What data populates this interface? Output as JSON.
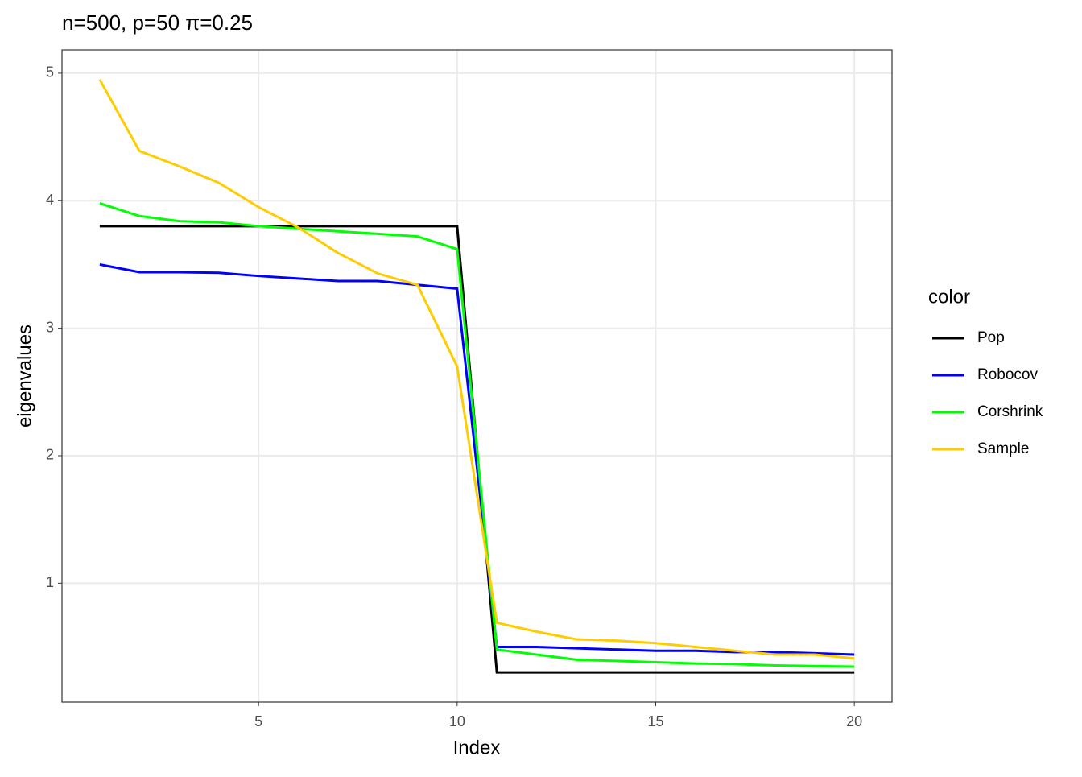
{
  "chart_data": {
    "type": "line",
    "title": "n=500, p=50 π=0.25",
    "x_label": "Index",
    "y_label": "eigenvalues",
    "legend_title": "color",
    "x": [
      1,
      2,
      3,
      4,
      5,
      6,
      7,
      8,
      9,
      10,
      11,
      12,
      13,
      14,
      15,
      16,
      17,
      18,
      19,
      20
    ],
    "series": [
      {
        "name": "Pop",
        "color": "#000000",
        "values": [
          3.8,
          3.8,
          3.8,
          3.8,
          3.8,
          3.8,
          3.8,
          3.8,
          3.8,
          3.8,
          0.3,
          0.3,
          0.3,
          0.3,
          0.3,
          0.3,
          0.3,
          0.3,
          0.3,
          0.3
        ]
      },
      {
        "name": "Robocov",
        "color": "#0000ff",
        "values": [
          3.5,
          3.44,
          3.44,
          3.435,
          3.41,
          3.39,
          3.37,
          3.37,
          3.34,
          3.31,
          0.5,
          0.5,
          0.49,
          0.48,
          0.47,
          0.47,
          0.46,
          0.46,
          0.45,
          0.44
        ]
      },
      {
        "name": "Corshrink",
        "color": "#00ff00",
        "values": [
          3.98,
          3.88,
          3.84,
          3.83,
          3.8,
          3.78,
          3.76,
          3.74,
          3.72,
          3.62,
          0.48,
          0.44,
          0.4,
          0.39,
          0.38,
          0.37,
          0.365,
          0.355,
          0.35,
          0.345
        ]
      },
      {
        "name": "Sample",
        "color": "#ffcc00",
        "values": [
          4.95,
          4.39,
          4.27,
          4.14,
          3.95,
          3.79,
          3.59,
          3.43,
          3.34,
          2.7,
          0.69,
          0.62,
          0.56,
          0.55,
          0.53,
          0.5,
          0.47,
          0.44,
          0.44,
          0.41
        ]
      }
    ],
    "xlim": [
      0.05,
      20.95
    ],
    "ylim": [
      0.0675,
      5.1825
    ],
    "xticks": [
      5,
      10,
      15,
      20
    ],
    "yticks": [
      1,
      2,
      3,
      4,
      5
    ],
    "grid": true,
    "legend": "right"
  }
}
